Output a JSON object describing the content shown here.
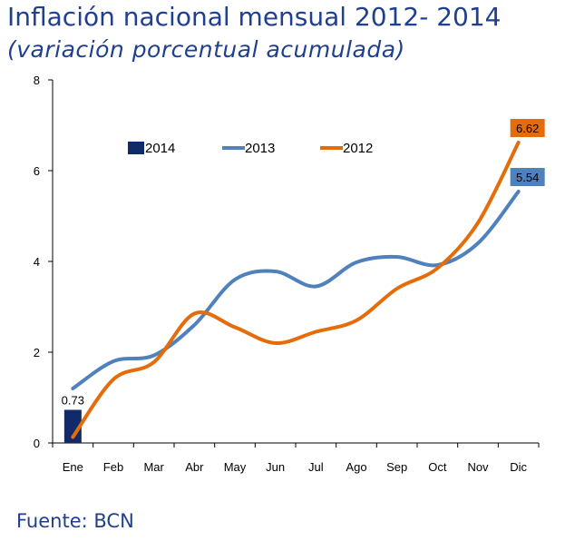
{
  "title": "Inflación nacional mensual  2012- 2014",
  "subtitle": "(variación porcentual acumulada)",
  "source": "Fuente: BCN",
  "colors": {
    "s2014": "#112a6a",
    "s2013": "#4f81bd",
    "s2012": "#e46c0a",
    "title": "#1f3f8f"
  },
  "chart_data": {
    "type": "line",
    "categories": [
      "Ene",
      "Feb",
      "Mar",
      "Abr",
      "May",
      "Jun",
      "Jul",
      "Ago",
      "Sep",
      "Oct",
      "Nov",
      "Dic"
    ],
    "ylim": [
      0,
      8
    ],
    "yticks": [
      0,
      2,
      4,
      6,
      8
    ],
    "grid": false,
    "legend_position": "top",
    "series": [
      {
        "name": "2014",
        "kind": "bar",
        "values": [
          0.73,
          null,
          null,
          null,
          null,
          null,
          null,
          null,
          null,
          null,
          null,
          null
        ],
        "label": "0.73"
      },
      {
        "name": "2013",
        "kind": "line",
        "values": [
          1.2,
          1.8,
          1.93,
          2.6,
          3.6,
          3.78,
          3.45,
          3.98,
          4.1,
          3.92,
          4.4,
          5.54
        ],
        "end_label": "5.54"
      },
      {
        "name": "2012",
        "kind": "line",
        "values": [
          0.13,
          1.4,
          1.78,
          2.85,
          2.55,
          2.2,
          2.45,
          2.7,
          3.4,
          3.85,
          4.85,
          6.62
        ],
        "end_label": "6.62"
      }
    ]
  }
}
